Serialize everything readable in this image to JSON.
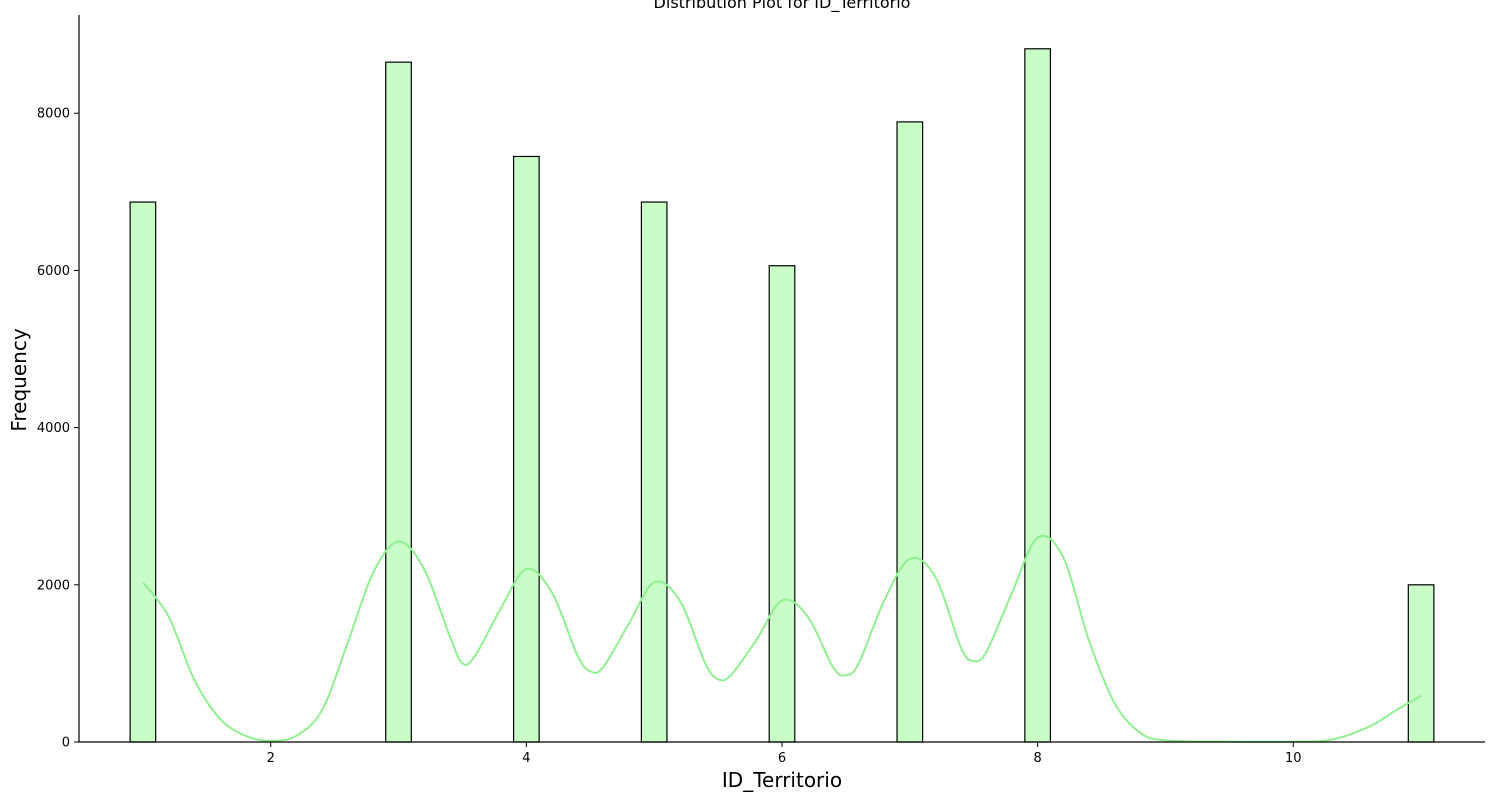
{
  "chart_data": {
    "type": "bar",
    "title": "Distribution Plot for ID_Territorio",
    "xlabel": "ID_Territorio",
    "ylabel": "Frequency",
    "xlim": [
      0.5,
      11.5
    ],
    "ylim": [
      0,
      9250
    ],
    "x_ticks": [
      2,
      4,
      6,
      8,
      10
    ],
    "y_ticks": [
      0,
      2000,
      4000,
      6000,
      8000
    ],
    "bin_width": 0.2,
    "bars": [
      {
        "x": 1,
        "value": 6870
      },
      {
        "x": 3,
        "value": 8650
      },
      {
        "x": 4,
        "value": 7450
      },
      {
        "x": 5,
        "value": 6870
      },
      {
        "x": 6,
        "value": 6060
      },
      {
        "x": 7,
        "value": 7890
      },
      {
        "x": 8,
        "value": 8820
      },
      {
        "x": 11,
        "value": 2000
      }
    ],
    "kde": {
      "x": [
        1.0,
        1.2,
        1.4,
        1.6,
        1.8,
        2.0,
        2.2,
        2.4,
        2.6,
        2.8,
        3.0,
        3.2,
        3.4,
        3.5,
        3.6,
        3.8,
        4.0,
        4.2,
        4.4,
        4.5,
        4.6,
        4.8,
        5.0,
        5.2,
        5.4,
        5.5,
        5.6,
        5.8,
        6.0,
        6.2,
        6.4,
        6.5,
        6.6,
        6.8,
        7.0,
        7.2,
        7.4,
        7.5,
        7.6,
        7.8,
        8.0,
        8.2,
        8.4,
        8.6,
        8.8,
        9.0,
        9.5,
        10.0,
        10.3,
        10.6,
        10.8,
        11.0
      ],
      "y": [
        2030,
        1600,
        800,
        300,
        80,
        15,
        80,
        400,
        1250,
        2150,
        2550,
        2200,
        1350,
        1000,
        1100,
        1700,
        2200,
        1900,
        1100,
        900,
        950,
        1500,
        2030,
        1800,
        1000,
        800,
        850,
        1300,
        1800,
        1600,
        950,
        850,
        1000,
        1800,
        2330,
        2100,
        1200,
        1030,
        1150,
        1900,
        2600,
        2350,
        1300,
        500,
        120,
        20,
        5,
        5,
        30,
        200,
        400,
        590
      ]
    },
    "bar_color": "#c8fdc8",
    "bar_edge_color": "#000000",
    "kde_color": "#90f090",
    "grid": false,
    "legend": "none"
  }
}
